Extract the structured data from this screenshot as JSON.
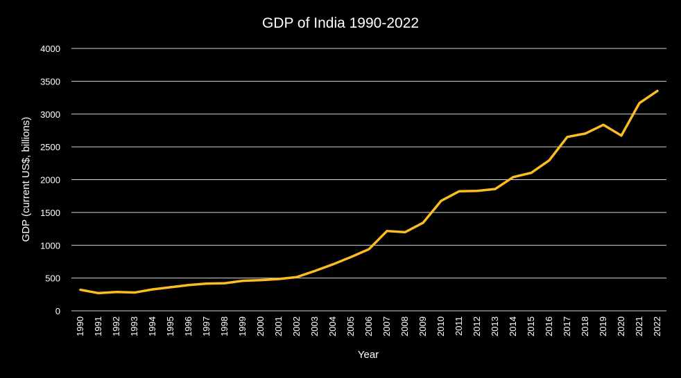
{
  "chart_data": {
    "type": "line",
    "title": "GDP of India 1990-2022",
    "xlabel": "Year",
    "ylabel": "GDP (current US$, billions)",
    "ylim": [
      0,
      4000
    ],
    "yticks": [
      0,
      500,
      1000,
      1500,
      2000,
      2500,
      3000,
      3500,
      4000
    ],
    "grid": true,
    "legend": "none",
    "x": [
      "1990",
      "1991",
      "1992",
      "1993",
      "1994",
      "1995",
      "1996",
      "1997",
      "1998",
      "1999",
      "2000",
      "2001",
      "2002",
      "2003",
      "2004",
      "2005",
      "2006",
      "2007",
      "2008",
      "2009",
      "2010",
      "2011",
      "2012",
      "2013",
      "2014",
      "2015",
      "2016",
      "2017",
      "2018",
      "2019",
      "2020",
      "2021",
      "2022"
    ],
    "series": [
      {
        "name": "GDP",
        "color": "#fbbd23",
        "values": [
          321,
          270,
          288,
          279,
          327,
          360,
          393,
          415,
          421,
          458,
          468,
          485,
          515,
          608,
          709,
          820,
          940,
          1217,
          1199,
          1342,
          1676,
          1823,
          1828,
          1857,
          2039,
          2104,
          2295,
          2651,
          2703,
          2836,
          2672,
          3167,
          3353
        ]
      }
    ],
    "colors": {
      "background": "#000000",
      "text": "#ffffff",
      "grid": "#d9d9d9",
      "line": "#fbbd23"
    }
  }
}
